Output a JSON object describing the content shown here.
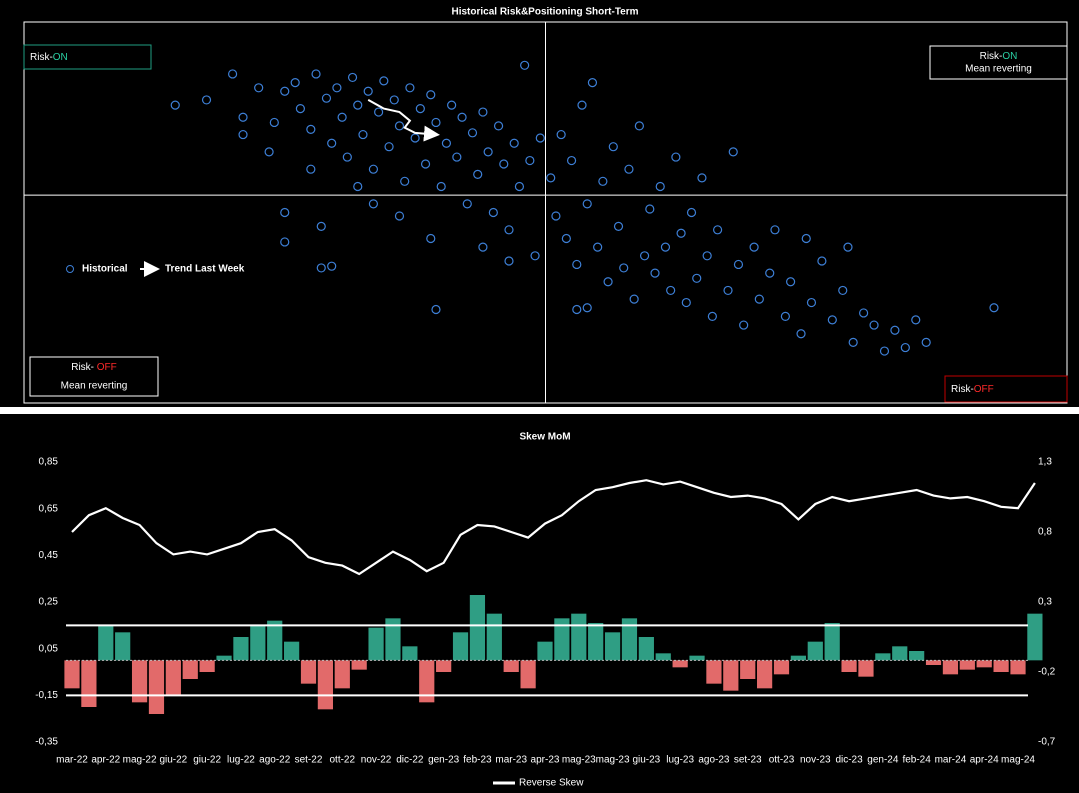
{
  "chart_data": [
    {
      "type": "scatter",
      "title": "Historical Risk&Positioning Short-Term",
      "xlim": [
        -1,
        1
      ],
      "ylim": [
        -1.2,
        1
      ],
      "series": [
        {
          "name": "Historical",
          "marker": "circle",
          "color": "#3d7fd6",
          "x": [
            -0.71,
            -0.65,
            -0.6,
            -0.58,
            -0.55,
            -0.52,
            -0.5,
            -0.48,
            -0.47,
            -0.45,
            -0.44,
            -0.42,
            -0.41,
            -0.4,
            -0.39,
            -0.38,
            -0.37,
            -0.36,
            -0.35,
            -0.34,
            -0.33,
            -0.32,
            -0.31,
            -0.3,
            -0.29,
            -0.28,
            -0.27,
            -0.26,
            -0.25,
            -0.24,
            -0.23,
            -0.22,
            -0.21,
            -0.2,
            -0.19,
            -0.18,
            -0.17,
            -0.16,
            -0.15,
            -0.14,
            -0.13,
            -0.12,
            -0.11,
            -0.1,
            -0.09,
            -0.08,
            -0.07,
            -0.06,
            -0.05,
            -0.04,
            -0.03,
            -0.02,
            -0.01,
            -0.5,
            -0.5,
            -0.43,
            -0.43,
            -0.41,
            -0.21,
            -0.33,
            -0.28,
            -0.22,
            -0.12,
            -0.07,
            -0.36,
            -0.45,
            -0.58,
            -0.53,
            0.01,
            0.02,
            0.03,
            0.04,
            0.05,
            0.06,
            0.07,
            0.08,
            0.09,
            0.1,
            0.11,
            0.12,
            0.13,
            0.14,
            0.15,
            0.16,
            0.17,
            0.18,
            0.19,
            0.2,
            0.21,
            0.22,
            0.23,
            0.24,
            0.25,
            0.26,
            0.27,
            0.28,
            0.29,
            0.3,
            0.31,
            0.32,
            0.33,
            0.35,
            0.36,
            0.37,
            0.38,
            0.4,
            0.41,
            0.43,
            0.44,
            0.46,
            0.47,
            0.49,
            0.51,
            0.53,
            0.55,
            0.57,
            0.59,
            0.61,
            0.63,
            0.65,
            0.67,
            0.69,
            0.71,
            0.73,
            0.08,
            0.06,
            0.86,
            0.58,
            0.5
          ],
          "values": [
            0.52,
            0.55,
            0.7,
            0.45,
            0.62,
            0.42,
            0.6,
            0.65,
            0.5,
            0.38,
            0.7,
            0.56,
            0.3,
            0.62,
            0.45,
            0.22,
            0.68,
            0.52,
            0.35,
            0.6,
            0.15,
            0.48,
            0.66,
            0.28,
            0.55,
            0.4,
            0.08,
            0.62,
            0.33,
            0.5,
            0.18,
            0.58,
            0.42,
            0.05,
            0.3,
            0.52,
            0.22,
            0.45,
            -0.05,
            0.36,
            0.12,
            0.48,
            0.25,
            -0.1,
            0.4,
            0.18,
            -0.2,
            0.3,
            0.05,
            0.75,
            0.2,
            -0.35,
            0.33,
            -0.1,
            -0.27,
            -0.18,
            -0.42,
            -0.41,
            -0.66,
            -0.05,
            -0.12,
            -0.25,
            -0.3,
            -0.38,
            0.05,
            0.15,
            0.35,
            0.25,
            0.1,
            -0.12,
            0.35,
            -0.25,
            0.2,
            -0.4,
            0.52,
            -0.05,
            0.65,
            -0.3,
            0.08,
            -0.5,
            0.28,
            -0.18,
            -0.42,
            0.15,
            -0.6,
            0.4,
            -0.35,
            -0.08,
            -0.45,
            0.05,
            -0.3,
            -0.55,
            0.22,
            -0.22,
            -0.62,
            -0.1,
            -0.48,
            0.1,
            -0.35,
            -0.7,
            -0.2,
            -0.55,
            0.25,
            -0.4,
            -0.75,
            -0.3,
            -0.6,
            -0.45,
            -0.2,
            -0.7,
            -0.5,
            -0.8,
            -0.62,
            -0.38,
            -0.72,
            -0.55,
            -0.85,
            -0.68,
            -0.75,
            -0.9,
            -0.78,
            -0.88,
            -0.72,
            -0.85,
            -0.65,
            -0.66,
            -0.65,
            -0.3,
            -0.25
          ]
        },
        {
          "name": "Trend Last Week",
          "marker": "arrow",
          "color": "#ffffff",
          "x": [
            -0.34,
            -0.31,
            -0.28,
            -0.26,
            -0.27,
            -0.25,
            -0.21
          ],
          "values": [
            0.55,
            0.5,
            0.48,
            0.43,
            0.39,
            0.36,
            0.35
          ]
        }
      ],
      "quadrants": [
        {
          "prefix": "Risk-",
          "state": "ON",
          "state_color": "#2ad0a4",
          "border": "#1f9e82"
        },
        {
          "prefix": "Risk-",
          "state": "ON",
          "note": "Mean reverting",
          "state_color": "#2ad0a4",
          "border": "#ffffff"
        },
        {
          "prefix": "Risk- ",
          "state": "OFF",
          "note": "Mean reverting",
          "state_color": "#ff2a2a",
          "border": "#ffffff"
        },
        {
          "prefix": "Risk-",
          "state": "OFF",
          "state_color": "#ff2a2a",
          "border": "#c00000"
        }
      ]
    },
    {
      "type": "bar-line",
      "title": "Skew MoM",
      "categories": [
        "mar-22",
        null,
        "apr-22",
        null,
        "mag-22",
        null,
        "giu-22",
        null,
        "giu-22",
        null,
        "lug-22",
        null,
        "ago-22",
        null,
        "set-22",
        null,
        "ott-22",
        null,
        "nov-22",
        null,
        "dic-22",
        null,
        "gen-23",
        null,
        "feb-23",
        null,
        "mar-23",
        null,
        "apr-23",
        null,
        "mag-23",
        null,
        "mag-23",
        null,
        "giu-23",
        null,
        "lug-23",
        null,
        "ago-23",
        null,
        "set-23",
        null,
        "ott-23",
        null,
        "nov-23",
        null,
        "dic-23",
        null,
        "gen-24",
        null,
        "feb-24",
        null,
        "mar-24",
        null,
        "apr-24",
        null,
        "mag-24",
        null
      ],
      "ylim": [
        -0.35,
        0.85
      ],
      "yticks": [
        {
          "value": 0.85,
          "label": "0,85"
        },
        {
          "value": 0.65,
          "label": "0,65"
        },
        {
          "value": 0.45,
          "label": "0,45"
        },
        {
          "value": 0.25,
          "label": "0,25"
        },
        {
          "value": 0.05,
          "label": "0,05"
        },
        {
          "value": -0.15,
          "label": "-0,15"
        },
        {
          "value": -0.35,
          "label": "-0,35"
        }
      ],
      "y2lim": [
        -0.7,
        1.3
      ],
      "y2ticks": [
        {
          "value": 1.3,
          "label": "1,3"
        },
        {
          "value": 0.8,
          "label": "0,8"
        },
        {
          "value": 0.3,
          "label": "0,3"
        },
        {
          "value": -0.2,
          "label": "-0,2"
        },
        {
          "value": -0.7,
          "label": "-0,7"
        }
      ],
      "reference_lines": [
        0.15,
        -0.15
      ],
      "legend": "bottom",
      "series": [
        {
          "name": "Reverse Skew",
          "type": "line",
          "axis": "y2",
          "color": "#ffffff",
          "values": [
            0.8,
            0.92,
            0.97,
            0.9,
            0.85,
            0.72,
            0.64,
            0.66,
            0.64,
            0.68,
            0.72,
            0.8,
            0.82,
            0.74,
            0.62,
            0.58,
            0.56,
            0.5,
            0.58,
            0.66,
            0.6,
            0.52,
            0.58,
            0.78,
            0.85,
            0.84,
            0.8,
            0.76,
            0.86,
            0.92,
            1.02,
            1.1,
            1.12,
            1.15,
            1.17,
            1.14,
            1.16,
            1.12,
            1.08,
            1.05,
            1.06,
            1.04,
            1.0,
            0.89,
            1.0,
            1.05,
            1.02,
            1.04,
            1.06,
            1.08,
            1.1,
            1.06,
            1.04,
            1.05,
            1.02,
            0.98,
            0.97,
            1.15
          ]
        },
        {
          "type": "bar",
          "positive_color": "#2f9e84",
          "negative_color": "#e26a6a",
          "values": [
            -0.12,
            -0.2,
            0.15,
            0.12,
            -0.18,
            -0.23,
            -0.15,
            -0.08,
            -0.05,
            0.02,
            0.1,
            0.15,
            0.17,
            0.08,
            -0.1,
            -0.21,
            -0.12,
            -0.04,
            0.14,
            0.18,
            0.06,
            -0.18,
            -0.05,
            0.12,
            0.28,
            0.2,
            -0.05,
            -0.12,
            0.08,
            0.18,
            0.2,
            0.16,
            0.12,
            0.18,
            0.1,
            0.03,
            -0.03,
            0.02,
            -0.1,
            -0.13,
            -0.08,
            -0.12,
            -0.06,
            0.02,
            0.08,
            0.16,
            -0.05,
            -0.07,
            0.03,
            0.06,
            0.04,
            -0.02,
            -0.06,
            -0.04,
            -0.03,
            -0.05,
            -0.06,
            0.2
          ]
        }
      ]
    }
  ]
}
